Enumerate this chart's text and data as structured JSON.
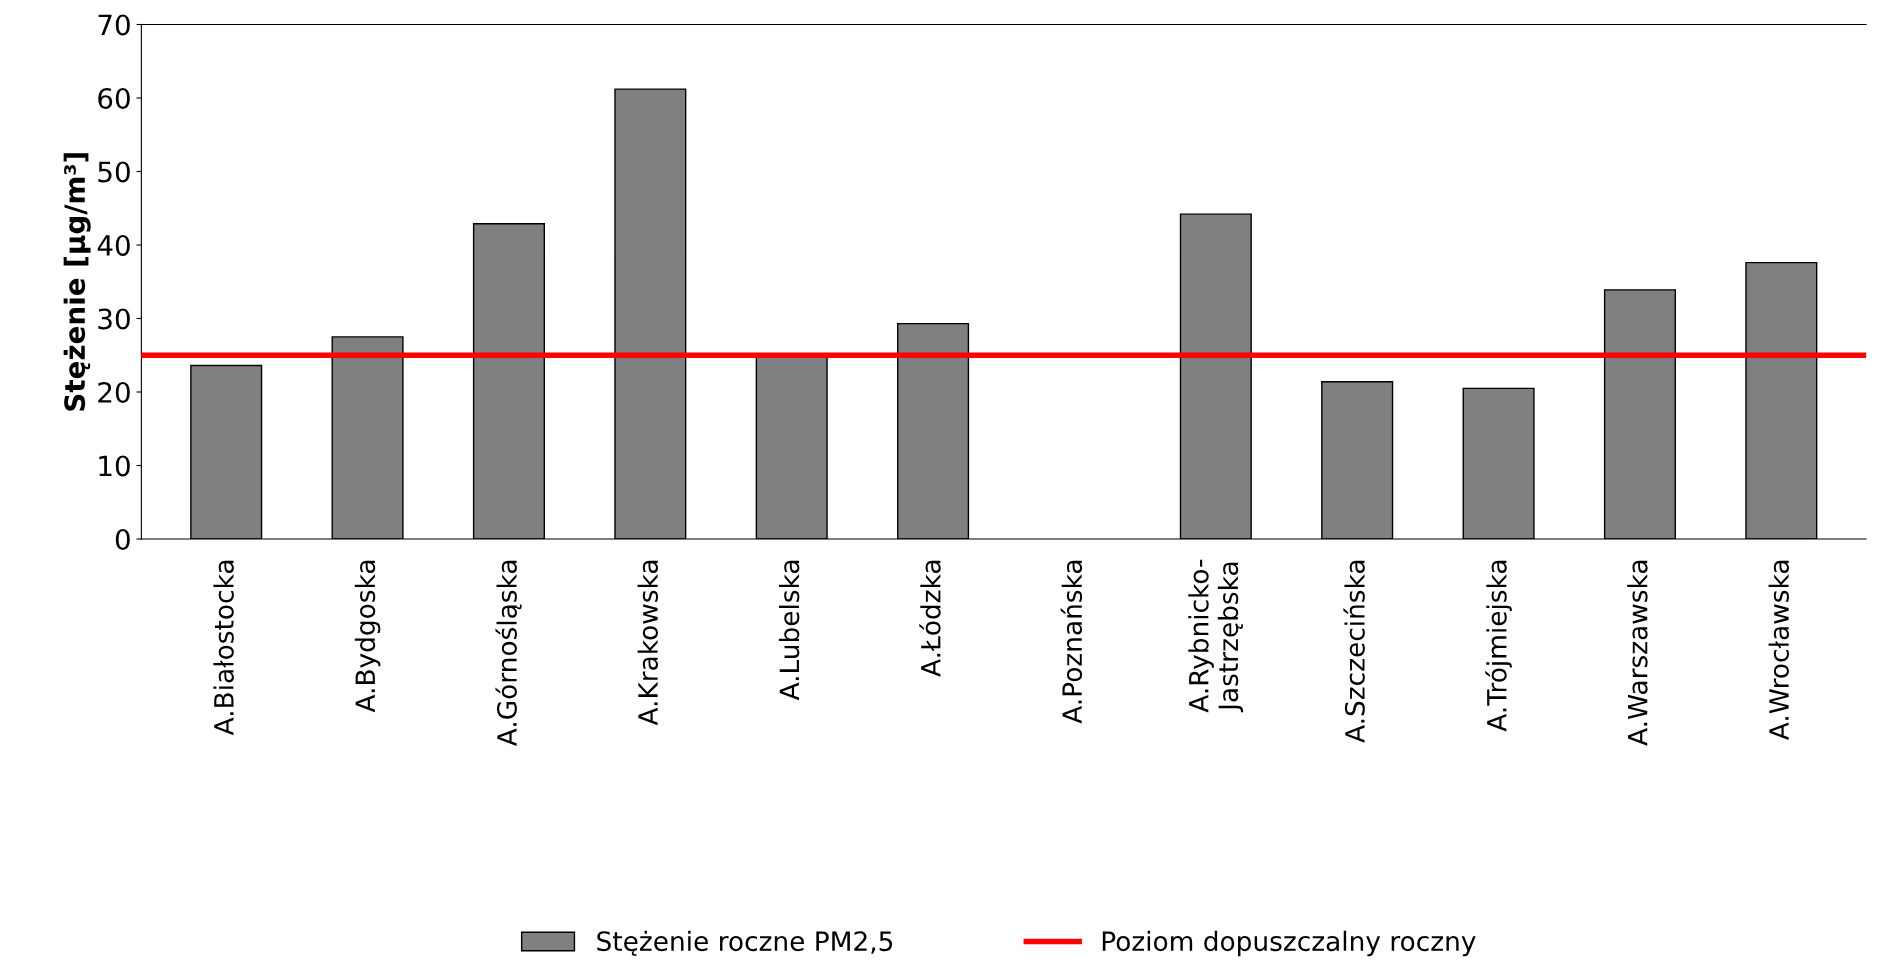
{
  "chart_data": {
    "type": "bar",
    "ylabel": "Stężenie [μg/m³]",
    "categories": [
      "A.Białostocka",
      "A.Bydgoska",
      "A.Górnośląska",
      "A.Krakowska",
      "A.Lubelska",
      "A.Łódzka",
      "A.Poznańska",
      "A.Rybnicko-\nJastrzębska",
      "A.Szczecińska",
      "A.Trójmiejska",
      "A.Warszawska",
      "A.Wrocławska"
    ],
    "series": [
      {
        "name": "Stężenie roczne PM2,5",
        "color": "#808080",
        "values": [
          23.6,
          27.5,
          42.9,
          61.2,
          25.0,
          29.3,
          null,
          44.2,
          21.4,
          20.5,
          33.9,
          37.6
        ]
      }
    ],
    "ref_lines": [
      {
        "axis": "y",
        "value": 25,
        "label": "Poziom dopuszczalny roczny",
        "color": "#ff0000",
        "line_style": "solid"
      }
    ],
    "ylim": [
      0,
      70
    ],
    "yticks": [
      0,
      10,
      20,
      30,
      40,
      50,
      60,
      70
    ],
    "grid": false,
    "legend": "bottom"
  }
}
